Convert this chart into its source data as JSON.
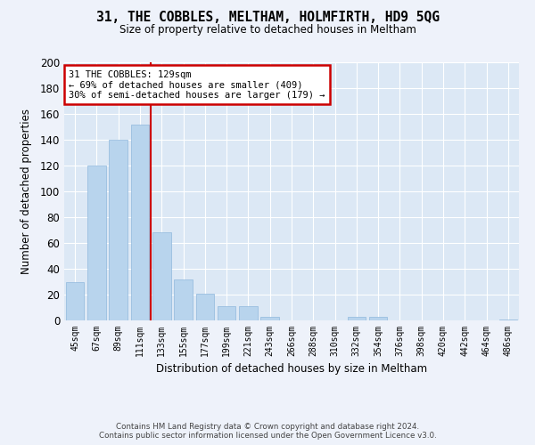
{
  "title": "31, THE COBBLES, MELTHAM, HOLMFIRTH, HD9 5QG",
  "subtitle": "Size of property relative to detached houses in Meltham",
  "xlabel": "Distribution of detached houses by size in Meltham",
  "ylabel": "Number of detached properties",
  "bar_color": "#b8d4ed",
  "bar_edge_color": "#90b8dd",
  "categories": [
    "45sqm",
    "67sqm",
    "89sqm",
    "111sqm",
    "133sqm",
    "155sqm",
    "177sqm",
    "199sqm",
    "221sqm",
    "243sqm",
    "266sqm",
    "288sqm",
    "310sqm",
    "332sqm",
    "354sqm",
    "376sqm",
    "398sqm",
    "420sqm",
    "442sqm",
    "464sqm",
    "486sqm"
  ],
  "values": [
    30,
    120,
    140,
    152,
    68,
    32,
    21,
    11,
    11,
    3,
    0,
    0,
    0,
    3,
    3,
    0,
    0,
    0,
    0,
    0,
    1
  ],
  "ylim": [
    0,
    200
  ],
  "yticks": [
    0,
    20,
    40,
    60,
    80,
    100,
    120,
    140,
    160,
    180,
    200
  ],
  "annotation_lines": [
    "31 THE COBBLES: 129sqm",
    "← 69% of detached houses are smaller (409)",
    "30% of semi-detached houses are larger (179) →"
  ],
  "footer_line1": "Contains HM Land Registry data © Crown copyright and database right 2024.",
  "footer_line2": "Contains public sector information licensed under the Open Government Licence v3.0.",
  "bg_color": "#eef2fa",
  "plot_bg_color": "#dce8f5",
  "grid_color": "#ffffff",
  "annotation_box_color": "#ffffff",
  "annotation_box_edge": "#cc0000",
  "vline_color": "#cc0000",
  "vline_x_index": 4
}
